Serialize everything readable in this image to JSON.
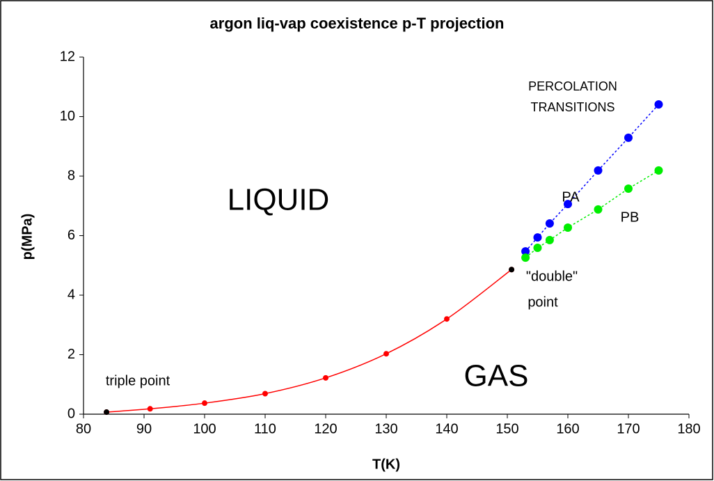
{
  "chart_data": {
    "type": "scatter",
    "title": "argon liq-vap coexistence p-T projection",
    "xlabel": "T(K)",
    "ylabel": "p(MPa)",
    "xlim": [
      80,
      180
    ],
    "xticks": [
      80,
      90,
      100,
      110,
      120,
      130,
      140,
      150,
      160,
      170,
      180
    ],
    "ylim": [
      0,
      12
    ],
    "yticks": [
      0,
      2,
      4,
      6,
      8,
      10,
      12
    ],
    "grid": false,
    "series": [
      {
        "color": "#ff0000",
        "line": "smooth",
        "x": [
          83.8,
          91,
          100,
          110,
          120,
          130,
          140,
          150.7
        ],
        "values": [
          0.069,
          0.18,
          0.37,
          0.69,
          1.22,
          2.03,
          3.2,
          4.86
        ]
      },
      {
        "color": "#000000",
        "line": "none",
        "x": [
          83.8,
          150.7
        ],
        "values": [
          0.069,
          4.86
        ]
      },
      {
        "color": "#0000ff",
        "line": "dotted",
        "x": [
          153,
          155,
          157,
          160,
          165,
          170,
          175
        ],
        "values": [
          5.47,
          5.94,
          6.41,
          7.06,
          8.19,
          9.29,
          10.41
        ]
      },
      {
        "color": "#00ee00",
        "line": "dotted",
        "x": [
          153,
          155,
          157,
          160,
          165,
          170,
          175
        ],
        "values": [
          5.26,
          5.59,
          5.85,
          6.27,
          6.88,
          7.58,
          8.19
        ]
      }
    ],
    "annotations": [
      "LIQUID",
      "GAS",
      "triple point",
      "\"double\"",
      "point",
      "PA",
      "PB",
      "PERCOLATION",
      "TRANSITIONS"
    ]
  }
}
